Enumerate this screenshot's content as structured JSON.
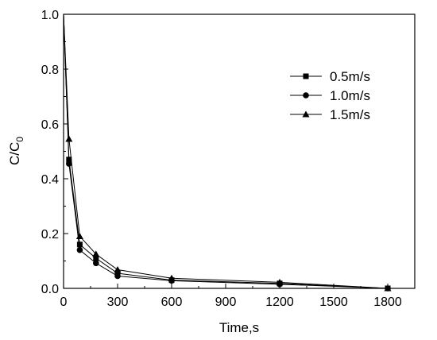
{
  "chart_data": {
    "type": "line",
    "title": "",
    "xlabel": "Time,s",
    "ylabel": "C/C",
    "ylabel_subscript": "0",
    "xlim": [
      0,
      1950
    ],
    "ylim": [
      0,
      1.0
    ],
    "xticks": [
      0,
      300,
      600,
      900,
      1200,
      1500,
      1800
    ],
    "yticks": [
      0.0,
      0.2,
      0.4,
      0.6,
      0.8,
      1.0
    ],
    "xtick_labels": [
      "0",
      "300",
      "600",
      "900",
      "1200",
      "1500",
      "1800"
    ],
    "ytick_labels": [
      "0.0",
      "0.2",
      "0.4",
      "0.6",
      "0.8",
      "1.0"
    ],
    "grid": false,
    "legend_position": "top-right",
    "x": [
      0,
      30,
      90,
      180,
      300,
      600,
      1200,
      1800
    ],
    "series": [
      {
        "name": "0.5m/s",
        "marker": "square",
        "values": [
          1.0,
          0.47,
          0.16,
          0.11,
          0.055,
          0.03,
          0.018,
          0.0
        ]
      },
      {
        "name": "1.0m/s",
        "marker": "circle",
        "values": [
          1.0,
          0.455,
          0.14,
          0.092,
          0.045,
          0.028,
          0.015,
          0.0
        ]
      },
      {
        "name": "1.5m/s",
        "marker": "triangle",
        "values": [
          1.0,
          0.545,
          0.19,
          0.125,
          0.068,
          0.037,
          0.022,
          0.0
        ]
      }
    ],
    "line_color": "#000000",
    "background": "#ffffff"
  }
}
